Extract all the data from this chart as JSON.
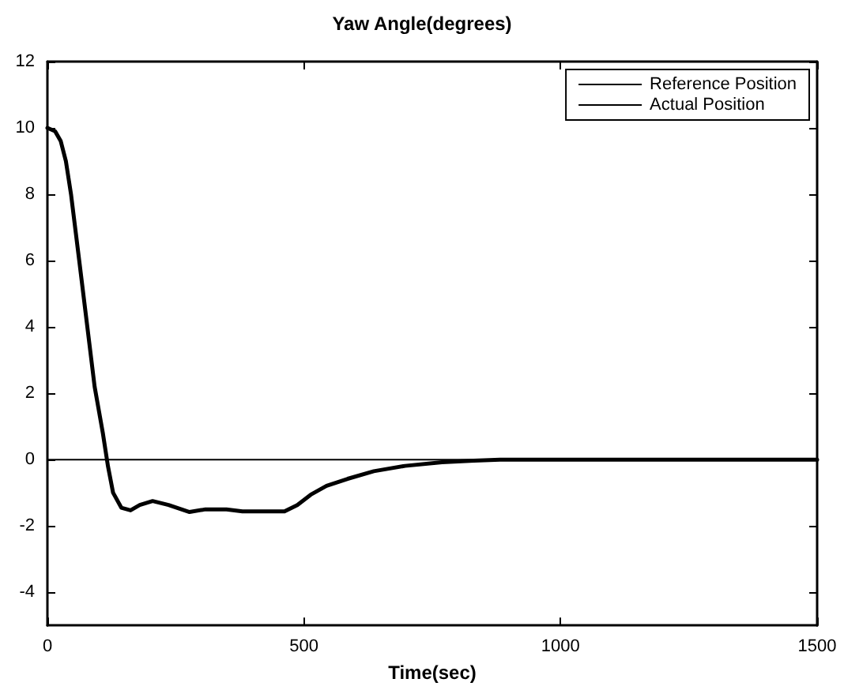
{
  "chart_data": {
    "type": "line",
    "title": "Yaw Angle(degrees)",
    "xlabel": "Time(sec)",
    "xlim": [
      0,
      1500
    ],
    "xticks": [
      0,
      500,
      1000,
      1500
    ],
    "ylim": [
      -5,
      12
    ],
    "yticks": [
      -4,
      -2,
      0,
      2,
      4,
      6,
      8,
      10,
      12
    ],
    "grid": false,
    "legend": "top right",
    "marker": "none",
    "line_style": "solid",
    "series": [
      {
        "name": "Reference Position",
        "color": "#000000",
        "x": [
          0,
          1500
        ],
        "values": [
          0,
          0
        ]
      },
      {
        "name": "Actual Position",
        "color": "#000000",
        "x": [
          0,
          15,
          26,
          36,
          46,
          62,
          77,
          92,
          108,
          118,
          128,
          144,
          162,
          180,
          205,
          236,
          277,
          308,
          349,
          380,
          462,
          487,
          513,
          544,
          585,
          636,
          697,
          769,
          831,
          882,
          1500
        ],
        "values": [
          10,
          9.9,
          9.6,
          9.0,
          8.0,
          6.0,
          4.1,
          2.2,
          0.8,
          -0.2,
          -1.0,
          -1.45,
          -1.53,
          -1.37,
          -1.25,
          -1.37,
          -1.58,
          -1.5,
          -1.5,
          -1.56,
          -1.56,
          -1.37,
          -1.06,
          -0.79,
          -0.58,
          -0.35,
          -0.19,
          -0.08,
          -0.03,
          0,
          0
        ]
      }
    ]
  }
}
